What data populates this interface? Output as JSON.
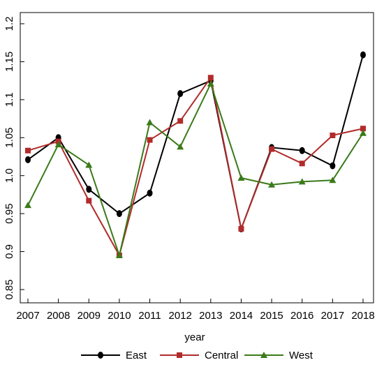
{
  "chart_data": {
    "type": "line",
    "title": "",
    "xlabel": "year",
    "ylabel": "",
    "categories": [
      "2007",
      "2008",
      "2009",
      "2010",
      "2011",
      "2012",
      "2013",
      "2014",
      "2015",
      "2016",
      "2017",
      "2018"
    ],
    "ylim": [
      0.85,
      1.2
    ],
    "yticks": [
      "0.85",
      "0.9",
      "0.95",
      "1.0",
      "1.05",
      "1.1",
      "1.15",
      "1.2"
    ],
    "grid": false,
    "legend_position": "bottom",
    "series": [
      {
        "name": "East",
        "color": "#000000",
        "marker": "circle",
        "values": [
          1.021,
          1.05,
          0.982,
          0.95,
          0.977,
          1.108,
          1.125,
          0.93,
          1.037,
          1.033,
          1.013,
          1.159
        ]
      },
      {
        "name": "Central",
        "color": "#b22b2b",
        "marker": "square",
        "values": [
          1.033,
          1.045,
          0.967,
          0.895,
          1.047,
          1.072,
          1.129,
          0.93,
          1.035,
          1.016,
          1.053,
          1.062
        ]
      },
      {
        "name": "West",
        "color": "#3a7a1a",
        "marker": "triangle",
        "values": [
          0.961,
          1.041,
          1.014,
          0.895,
          1.07,
          1.038,
          1.121,
          0.997,
          0.988,
          0.992,
          0.994,
          1.056
        ]
      }
    ]
  }
}
